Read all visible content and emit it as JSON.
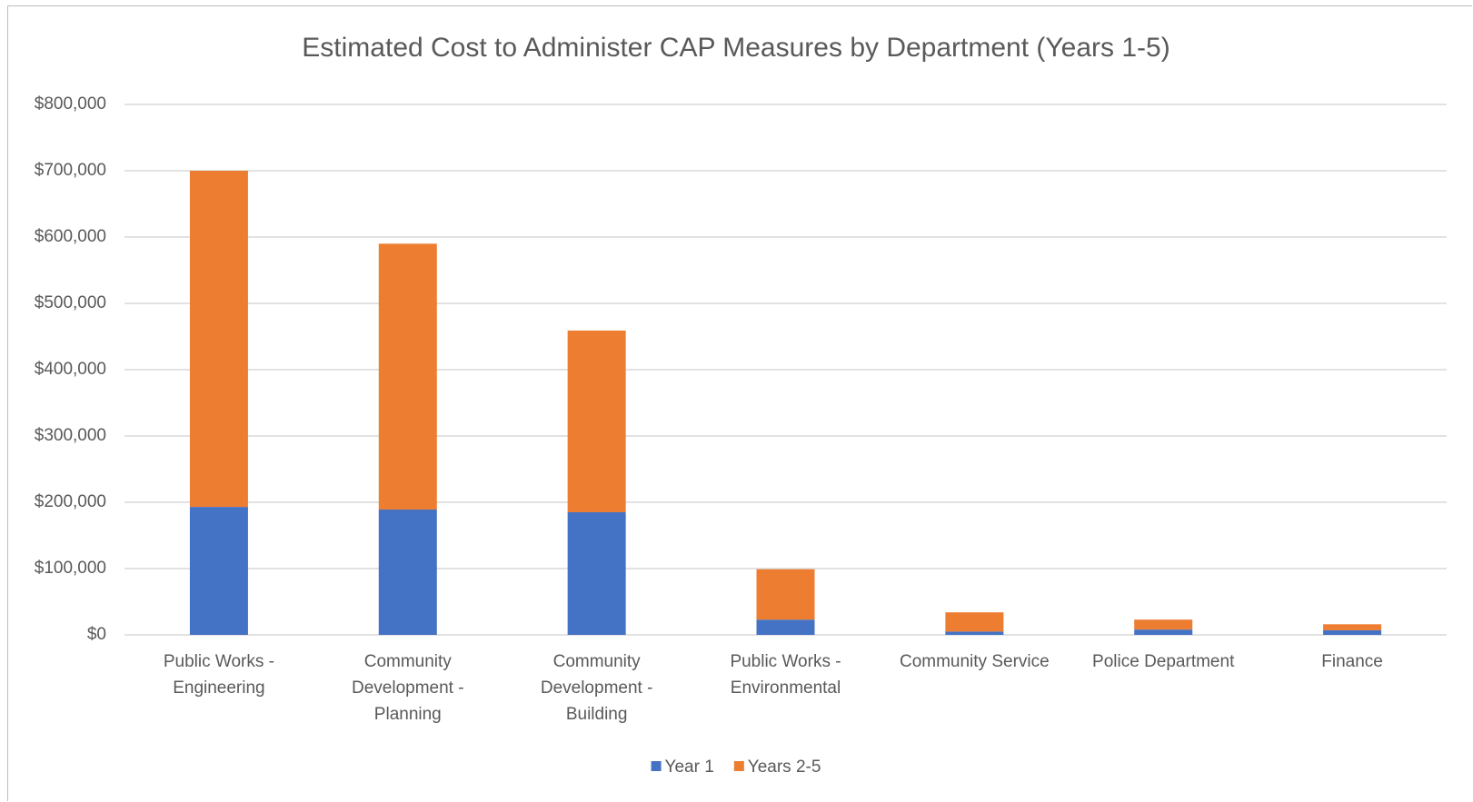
{
  "chart_data": {
    "type": "stacked-bar",
    "title": "Estimated Cost to Administer CAP Measures by Department (Years 1-5)",
    "categories": [
      "Public Works - Engineering",
      "Community Development - Planning",
      "Community Development - Building",
      "Public Works - Environmental",
      "Community Service",
      "Police Department",
      "Finance"
    ],
    "series": [
      {
        "name": "Year 1",
        "color": "#4472c4",
        "values": [
          193000,
          189000,
          185000,
          23000,
          5000,
          8000,
          7000
        ]
      },
      {
        "name": "Years 2-5",
        "color": "#ed7d31",
        "values": [
          507000,
          401000,
          274000,
          76000,
          29000,
          15000,
          9000
        ]
      }
    ],
    "ylim": [
      0,
      800000
    ],
    "yticks": [
      {
        "value": 0,
        "label": "$0"
      },
      {
        "value": 100000,
        "label": "$100,000"
      },
      {
        "value": 200000,
        "label": "$200,000"
      },
      {
        "value": 300000,
        "label": "$300,000"
      },
      {
        "value": 400000,
        "label": "$400,000"
      },
      {
        "value": 500000,
        "label": "$500,000"
      },
      {
        "value": 600000,
        "label": "$600,000"
      },
      {
        "value": 700000,
        "label": "$700,000"
      },
      {
        "value": 800000,
        "label": "$800,000"
      }
    ],
    "grid": true,
    "legend": "bottom"
  }
}
